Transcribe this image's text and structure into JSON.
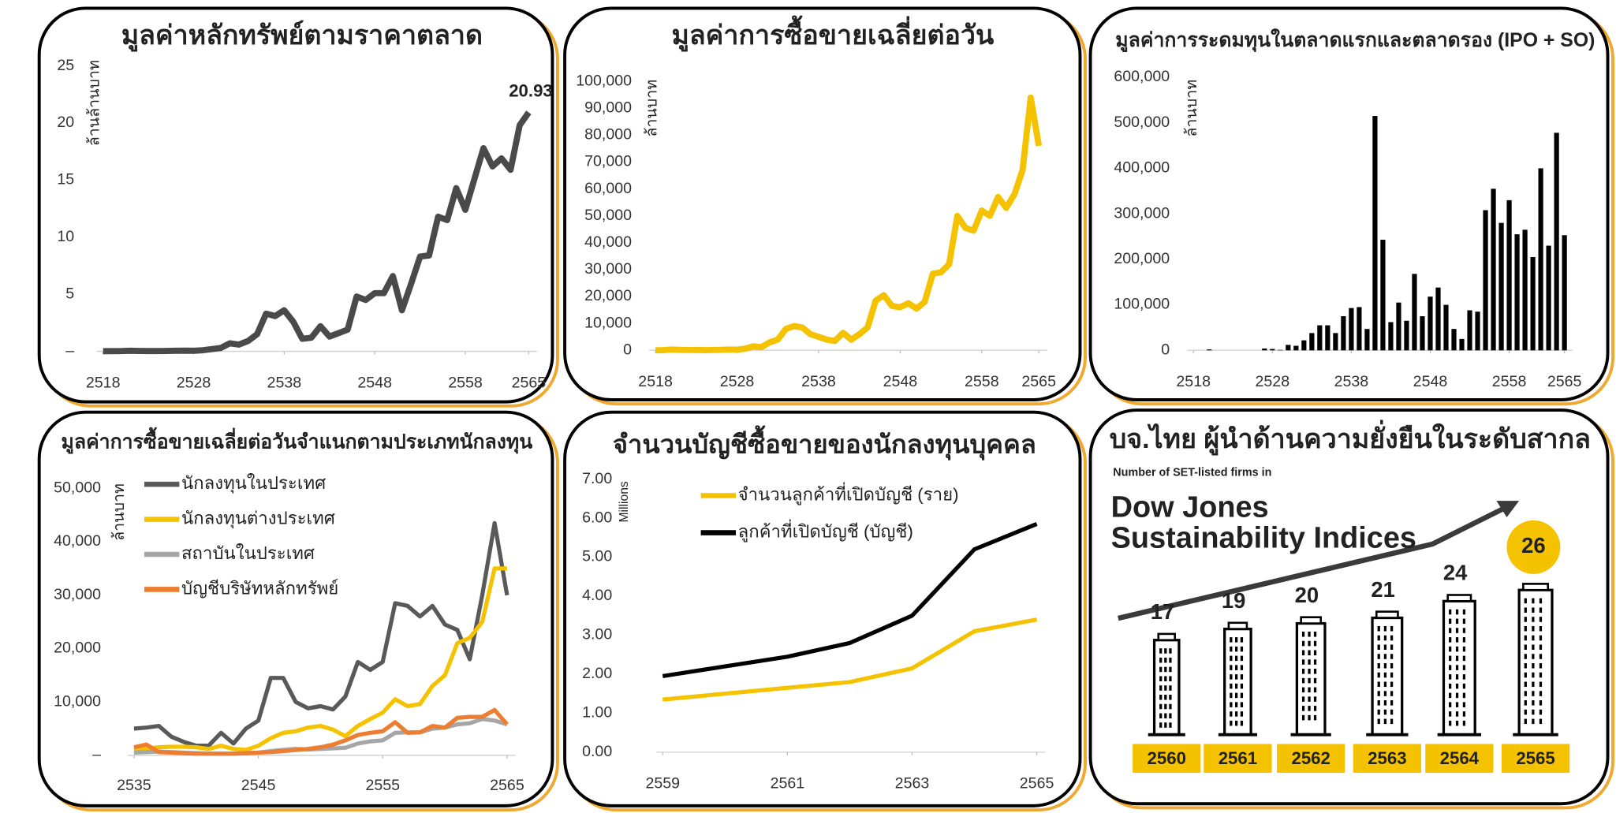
{
  "chart_data": [
    {
      "type": "line",
      "title": "มูลค่าหลักทรัพย์ตามราคาตลาด",
      "ylabel": "ล้านล้านบาท",
      "x": [
        2518,
        2519,
        2520,
        2521,
        2522,
        2523,
        2524,
        2525,
        2526,
        2527,
        2528,
        2529,
        2530,
        2531,
        2532,
        2533,
        2534,
        2535,
        2536,
        2537,
        2538,
        2539,
        2540,
        2541,
        2542,
        2543,
        2544,
        2545,
        2546,
        2547,
        2548,
        2549,
        2550,
        2551,
        2552,
        2553,
        2554,
        2555,
        2556,
        2557,
        2558,
        2559,
        2560,
        2561,
        2562,
        2563,
        2564,
        2565
      ],
      "series": [
        {
          "color": "#4a4a4a",
          "values": [
            0.02,
            0.02,
            0.03,
            0.05,
            0.04,
            0.03,
            0.03,
            0.04,
            0.05,
            0.06,
            0.05,
            0.1,
            0.2,
            0.3,
            0.7,
            0.6,
            0.9,
            1.5,
            3.3,
            3.1,
            3.6,
            2.6,
            1.1,
            1.2,
            2.2,
            1.3,
            1.6,
            1.9,
            4.8,
            4.5,
            5.1,
            5.1,
            6.6,
            3.6,
            5.9,
            8.3,
            8.4,
            11.8,
            11.5,
            14.3,
            12.4,
            15.1,
            17.8,
            16.2,
            16.9,
            15.9,
            19.8,
            20.93
          ]
        }
      ],
      "annotations": [
        "20.93"
      ],
      "xlim": [
        2518,
        2565
      ],
      "xticks": [
        2518,
        2528,
        2538,
        2548,
        2558,
        2565
      ],
      "ylim": [
        0,
        25
      ],
      "yticks": [
        {
          "value": 0,
          "label": "–"
        },
        5,
        10,
        15,
        20,
        25
      ]
    },
    {
      "type": "line",
      "title": "มูลค่าการซื้อขายเฉลี่ยต่อวัน",
      "ylabel": "ล้านบาท",
      "x": [
        2518,
        2519,
        2520,
        2521,
        2522,
        2523,
        2524,
        2525,
        2526,
        2527,
        2528,
        2529,
        2530,
        2531,
        2532,
        2533,
        2534,
        2535,
        2536,
        2537,
        2538,
        2539,
        2540,
        2541,
        2542,
        2543,
        2544,
        2545,
        2546,
        2547,
        2548,
        2549,
        2550,
        2551,
        2552,
        2553,
        2554,
        2555,
        2556,
        2557,
        2558,
        2559,
        2560,
        2561,
        2562,
        2563,
        2564,
        2565
      ],
      "series": [
        {
          "color": "#f5c200",
          "values": [
            50,
            80,
            300,
            200,
            100,
            100,
            80,
            100,
            200,
            300,
            250,
            600,
            1500,
            1200,
            3000,
            4000,
            8000,
            9000,
            8500,
            6000,
            5000,
            4000,
            3500,
            6500,
            4000,
            6000,
            8500,
            18500,
            20500,
            16500,
            16000,
            17500,
            15500,
            18000,
            28500,
            29000,
            32000,
            50000,
            45500,
            44500,
            52000,
            50000,
            57000,
            53000,
            58000,
            67000,
            94000,
            76000
          ]
        }
      ],
      "xlim": [
        2518,
        2565
      ],
      "xticks": [
        2518,
        2528,
        2538,
        2548,
        2558,
        2565
      ],
      "ylim": [
        0,
        100000
      ],
      "yticks": [
        0,
        {
          "value": 10000,
          "label": "10,000"
        },
        {
          "value": 20000,
          "label": "20,000"
        },
        {
          "value": 30000,
          "label": "30,000"
        },
        {
          "value": 40000,
          "label": "40,000"
        },
        {
          "value": 50000,
          "label": "50,000"
        },
        {
          "value": 60000,
          "label": "60,000"
        },
        {
          "value": 70000,
          "label": "70,000"
        },
        {
          "value": 80000,
          "label": "80,000"
        },
        {
          "value": 90000,
          "label": "90,000"
        },
        {
          "value": 100000,
          "label": "100,000"
        }
      ]
    },
    {
      "type": "bar",
      "title": "มูลค่าการระดมทุนในตลาดแรกและตลาดรอง (IPO + SO)",
      "ylabel": "ล้านบาท",
      "color": "#000000",
      "x": [
        2518,
        2519,
        2520,
        2521,
        2522,
        2523,
        2524,
        2525,
        2526,
        2527,
        2528,
        2529,
        2530,
        2531,
        2532,
        2533,
        2534,
        2535,
        2536,
        2537,
        2538,
        2539,
        2540,
        2541,
        2542,
        2543,
        2544,
        2545,
        2546,
        2547,
        2548,
        2549,
        2550,
        2551,
        2552,
        2553,
        2554,
        2555,
        2556,
        2557,
        2558,
        2559,
        2560,
        2561,
        2562,
        2563,
        2564,
        2565
      ],
      "values": [
        0,
        0,
        2000,
        0,
        0,
        0,
        0,
        0,
        0,
        4000,
        3000,
        1000,
        12000,
        10000,
        22000,
        38000,
        55000,
        55000,
        38000,
        75000,
        93000,
        95000,
        47000,
        515000,
        243000,
        62000,
        105000,
        65000,
        168000,
        75000,
        118000,
        138000,
        100000,
        47000,
        25000,
        88000,
        85000,
        308000,
        355000,
        280000,
        330000,
        255000,
        265000,
        205000,
        400000,
        230000,
        478000,
        253000
      ],
      "xlim": [
        2518,
        2565
      ],
      "xticks": [
        2518,
        2528,
        2538,
        2548,
        2558,
        2565
      ],
      "ylim": [
        0,
        600000
      ],
      "yticks": [
        0,
        {
          "value": 100000,
          "label": "100,000"
        },
        {
          "value": 200000,
          "label": "200,000"
        },
        {
          "value": 300000,
          "label": "300,000"
        },
        {
          "value": 400000,
          "label": "400,000"
        },
        {
          "value": 500000,
          "label": "500,000"
        },
        {
          "value": 600000,
          "label": "600,000"
        }
      ]
    },
    {
      "type": "line",
      "title": "มูลค่าการซื้อขายเฉลี่ยต่อวันจำแนกตามประเภทนักลงทุน",
      "ylabel": "ล้านบาท",
      "x": [
        2535,
        2536,
        2537,
        2538,
        2539,
        2540,
        2541,
        2542,
        2543,
        2544,
        2545,
        2546,
        2547,
        2548,
        2549,
        2550,
        2551,
        2552,
        2553,
        2554,
        2555,
        2556,
        2557,
        2558,
        2559,
        2560,
        2561,
        2562,
        2563,
        2564,
        2565
      ],
      "series": [
        {
          "name": "นักลงทุนในประเทศ",
          "color": "#595959",
          "values": [
            5000,
            5200,
            5500,
            3500,
            2500,
            1800,
            1800,
            4200,
            2200,
            5000,
            6500,
            14500,
            14500,
            10000,
            8800,
            9200,
            8600,
            11000,
            17500,
            16000,
            17500,
            28500,
            28000,
            26000,
            28000,
            24500,
            23500,
            18000,
            30000,
            43500,
            30000
          ]
        },
        {
          "name": "นักลงทุนต่างประเทศ",
          "color": "#f5c200",
          "values": [
            1000,
            1300,
            1500,
            1600,
            1600,
            1500,
            1200,
            1800,
            1200,
            1000,
            1800,
            3200,
            4200,
            4500,
            5200,
            5500,
            4800,
            3600,
            5500,
            6800,
            8000,
            10500,
            9200,
            9600,
            13000,
            15000,
            21000,
            22000,
            25000,
            35000,
            35000
          ]
        },
        {
          "name": "สถาบันในประเทศ",
          "color": "#a6a6a6",
          "values": [
            500,
            600,
            700,
            600,
            500,
            400,
            300,
            300,
            300,
            400,
            500,
            800,
            1000,
            1200,
            1100,
            1200,
            1300,
            1400,
            2200,
            2600,
            2800,
            4200,
            4300,
            4300,
            5000,
            5200,
            5800,
            6000,
            6800,
            6500,
            5800
          ]
        },
        {
          "name": "บัญชีบริษัทหลักทรัพย์",
          "color": "#ed7d31",
          "values": [
            1500,
            2000,
            600,
            500,
            400,
            300,
            300,
            300,
            300,
            400,
            500,
            600,
            800,
            1000,
            1200,
            1500,
            2000,
            2800,
            3800,
            4200,
            4500,
            6200,
            4200,
            4300,
            5500,
            5200,
            7000,
            7200,
            7200,
            8500,
            5800
          ]
        }
      ],
      "xlim": [
        2535,
        2565
      ],
      "xticks": [
        2535,
        2545,
        2555,
        2565
      ],
      "ylim": [
        0,
        50000
      ],
      "yticks": [
        {
          "value": 0,
          "label": "–"
        },
        {
          "value": 10000,
          "label": "10,000"
        },
        {
          "value": 20000,
          "label": "20,000"
        },
        {
          "value": 30000,
          "label": "30,000"
        },
        {
          "value": 40000,
          "label": "40,000"
        },
        {
          "value": 50000,
          "label": "50,000"
        }
      ]
    },
    {
      "type": "line",
      "title": "จำนวนบัญชีซื้อขายของนักลงทุนบุคคล",
      "ylabel": "Millions",
      "x": [
        2559,
        2560,
        2561,
        2562,
        2563,
        2564,
        2565
      ],
      "series": [
        {
          "name": "จำนวนลูกค้าที่เปิดบัญชี (ราย)",
          "color": "#f5c200",
          "values": [
            1.35,
            1.5,
            1.65,
            1.8,
            2.15,
            3.1,
            3.4
          ]
        },
        {
          "name": "ลูกค้าที่เปิดบัญชี (บัญชี)",
          "color": "#000000",
          "values": [
            1.95,
            2.2,
            2.45,
            2.8,
            3.5,
            5.2,
            5.85
          ]
        }
      ],
      "xlim": [
        2559,
        2565
      ],
      "xticks": [
        2559,
        2561,
        2563,
        2565
      ],
      "ylim": [
        0,
        7
      ],
      "yticks": [
        {
          "value": 0,
          "label": "0.00"
        },
        {
          "value": 1,
          "label": "1.00"
        },
        {
          "value": 2,
          "label": "2.00"
        },
        {
          "value": 3,
          "label": "3.00"
        },
        {
          "value": 4,
          "label": "4.00"
        },
        {
          "value": 5,
          "label": "5.00"
        },
        {
          "value": 6,
          "label": "6.00"
        },
        {
          "value": 7,
          "label": "7.00"
        }
      ]
    },
    {
      "type": "building",
      "title": "บจ.ไทย ผู้นำด้านความยั่งยืนในระดับสากล",
      "subtitle": "Number of SET-listed firms in",
      "heading": [
        "Dow Jones",
        "Sustainability Indices"
      ],
      "categories": [
        "2560",
        "2561",
        "2562",
        "2563",
        "2564",
        "2565"
      ],
      "values": [
        17,
        19,
        20,
        21,
        24,
        26
      ],
      "color": "#f5c200"
    }
  ]
}
